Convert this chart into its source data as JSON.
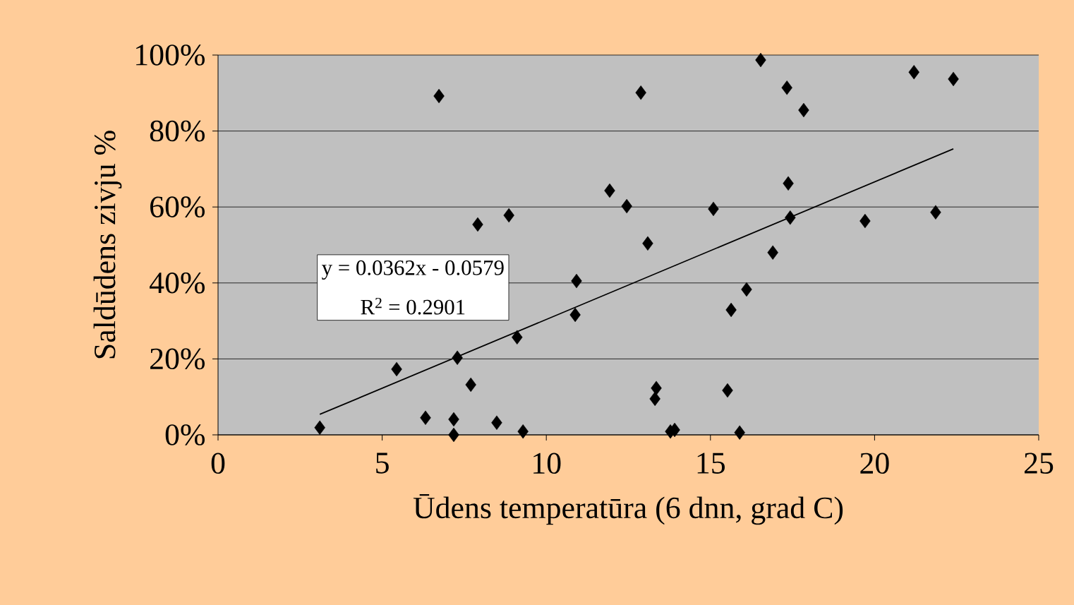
{
  "chart_data": {
    "type": "scatter",
    "xlabel": "Ūdens temperatūra (6 dnn, grad C)",
    "ylabel": "Saldūdens zivju %",
    "xlim": [
      0,
      25
    ],
    "xticks": [
      0,
      5,
      10,
      15,
      20,
      25
    ],
    "ylim": [
      0,
      100
    ],
    "yticks": [
      {
        "value": 0,
        "label": "0%"
      },
      {
        "value": 20,
        "label": "20%"
      },
      {
        "value": 40,
        "label": "40%"
      },
      {
        "value": 60,
        "label": "60%"
      },
      {
        "value": 80,
        "label": "80%"
      },
      {
        "value": 100,
        "label": "100%"
      }
    ],
    "grid": "y",
    "annotations": [
      "y = 0.0362x - 0.0579",
      "R$^{2}$ = 0.2901"
    ],
    "series": [
      {
        "marker": "diamond",
        "color": "#000000",
        "x": [
          3.1,
          5.44,
          6.32,
          6.73,
          7.18,
          7.18,
          7.29,
          7.7,
          7.91,
          8.49,
          8.86,
          9.11,
          9.29,
          10.88,
          10.92,
          11.93,
          12.45,
          12.88,
          13.09,
          13.31,
          13.35,
          13.78,
          13.91,
          15.09,
          15.52,
          15.63,
          15.89,
          16.1,
          16.53,
          16.9,
          17.33,
          17.37,
          17.43,
          17.84,
          19.71,
          21.2,
          21.86,
          22.4
        ],
        "values": [
          1.9,
          17.3,
          4.5,
          89.2,
          4.1,
          0,
          20.3,
          13.2,
          55.4,
          3.2,
          57.8,
          25.7,
          0.9,
          31.6,
          40.5,
          64.3,
          60.2,
          90.1,
          50.4,
          9.5,
          12.3,
          0.9,
          1.3,
          59.5,
          11.7,
          32.9,
          0.6,
          38.3,
          98.7,
          48.0,
          91.4,
          66.2,
          57.2,
          85.5,
          56.3,
          95.5,
          58.6,
          93.7
        ]
      },
      {
        "type": "line",
        "marker": "none",
        "color": "#000000",
        "x": [
          3.1,
          22.4
        ],
        "values": [
          5.4,
          75.3
        ]
      }
    ]
  }
}
